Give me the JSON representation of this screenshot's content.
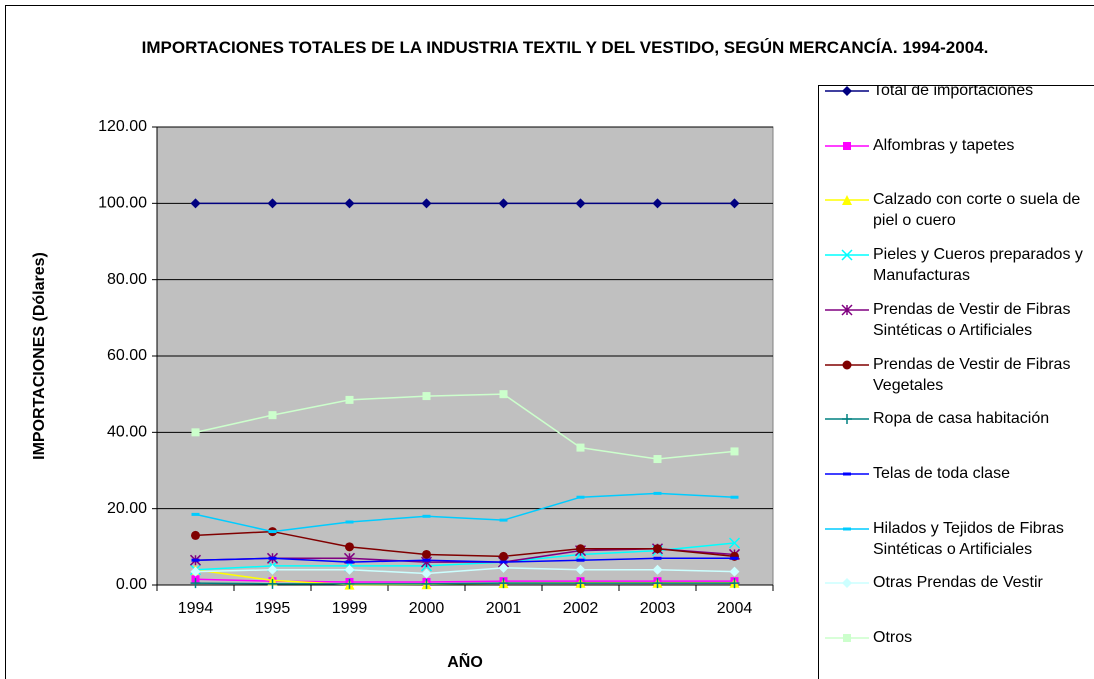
{
  "chart_data": {
    "type": "line",
    "title": "IMPORTACIONES TOTALES DE LA INDUSTRIA TEXTIL Y DEL VESTIDO, SEGÚN MERCANCÍA. 1994-2004.",
    "x_label": "AÑO",
    "y_label": "IMPORTACIONES (Dólares)",
    "categories": [
      "1994",
      "1995",
      "1999",
      "2000",
      "2001",
      "2002",
      "2003",
      "2004"
    ],
    "ylim": [
      0,
      120
    ],
    "yticks": [
      {
        "value": 0,
        "label": "0.00"
      },
      {
        "value": 20,
        "label": "20.00"
      },
      {
        "value": 40,
        "label": "40.00"
      },
      {
        "value": 60,
        "label": "60.00"
      },
      {
        "value": 80,
        "label": "80.00"
      },
      {
        "value": 100,
        "label": "100.00"
      },
      {
        "value": 120,
        "label": "120.00"
      }
    ],
    "grid": true,
    "legend": "right",
    "series": [
      {
        "name": "Total de importaciones",
        "color": "#000080",
        "marker": "diamond",
        "values": [
          100,
          100,
          100,
          100,
          100,
          100,
          100,
          100
        ]
      },
      {
        "name": "Alfombras y tapetes",
        "color": "#ff00ff",
        "marker": "square",
        "values": [
          1.5,
          1,
          0.8,
          0.8,
          1,
          1,
          1,
          1
        ]
      },
      {
        "name": "Calzado con corte o suela de piel o cuero",
        "color": "#ffff00",
        "marker": "triangle",
        "values": [
          4,
          1.2,
          0.1,
          0.2,
          0.5,
          0.6,
          0.6,
          0.6
        ]
      },
      {
        "name": "Pieles y Cueros preparados y Manufacturas",
        "color": "#00ffff",
        "marker": "x",
        "values": [
          4,
          5,
          5,
          5,
          6,
          8,
          9,
          11
        ]
      },
      {
        "name": "Prendas de Vestir de Fibras Sintéticas o Artificiales",
        "color": "#800080",
        "marker": "asterisk",
        "values": [
          6.5,
          7,
          7,
          6,
          6,
          9,
          9.5,
          8
        ]
      },
      {
        "name": "Prendas de Vestir de Fibras Vegetales",
        "color": "#800000",
        "marker": "circle",
        "values": [
          13,
          14,
          10,
          8,
          7.5,
          9.5,
          9.5,
          7.5
        ]
      },
      {
        "name": "Ropa de casa habitación",
        "color": "#008080",
        "marker": "plus",
        "values": [
          0.5,
          0.3,
          0.3,
          0.3,
          0.5,
          0.5,
          0.5,
          0.5
        ]
      },
      {
        "name": "Telas de toda clase",
        "color": "#0000ff",
        "marker": "dash",
        "values": [
          6.5,
          7,
          6,
          6.5,
          6,
          6.5,
          7,
          7
        ]
      },
      {
        "name": "Hilados y Tejidos de Fibras Sintéticas o Artificiales",
        "color": "#00ccff",
        "marker": "dash",
        "values": [
          18.5,
          14,
          16.5,
          18,
          17,
          23,
          24,
          23
        ]
      },
      {
        "name": "Otras Prendas de Vestir",
        "color": "#ccffff",
        "marker": "diamond",
        "values": [
          3.5,
          4,
          4,
          3,
          4.5,
          4,
          4,
          3.5
        ]
      },
      {
        "name": "Otros",
        "color": "#ccffcc",
        "marker": "square",
        "values": [
          40,
          44.5,
          48.5,
          49.5,
          50,
          36,
          33,
          35
        ]
      }
    ]
  }
}
